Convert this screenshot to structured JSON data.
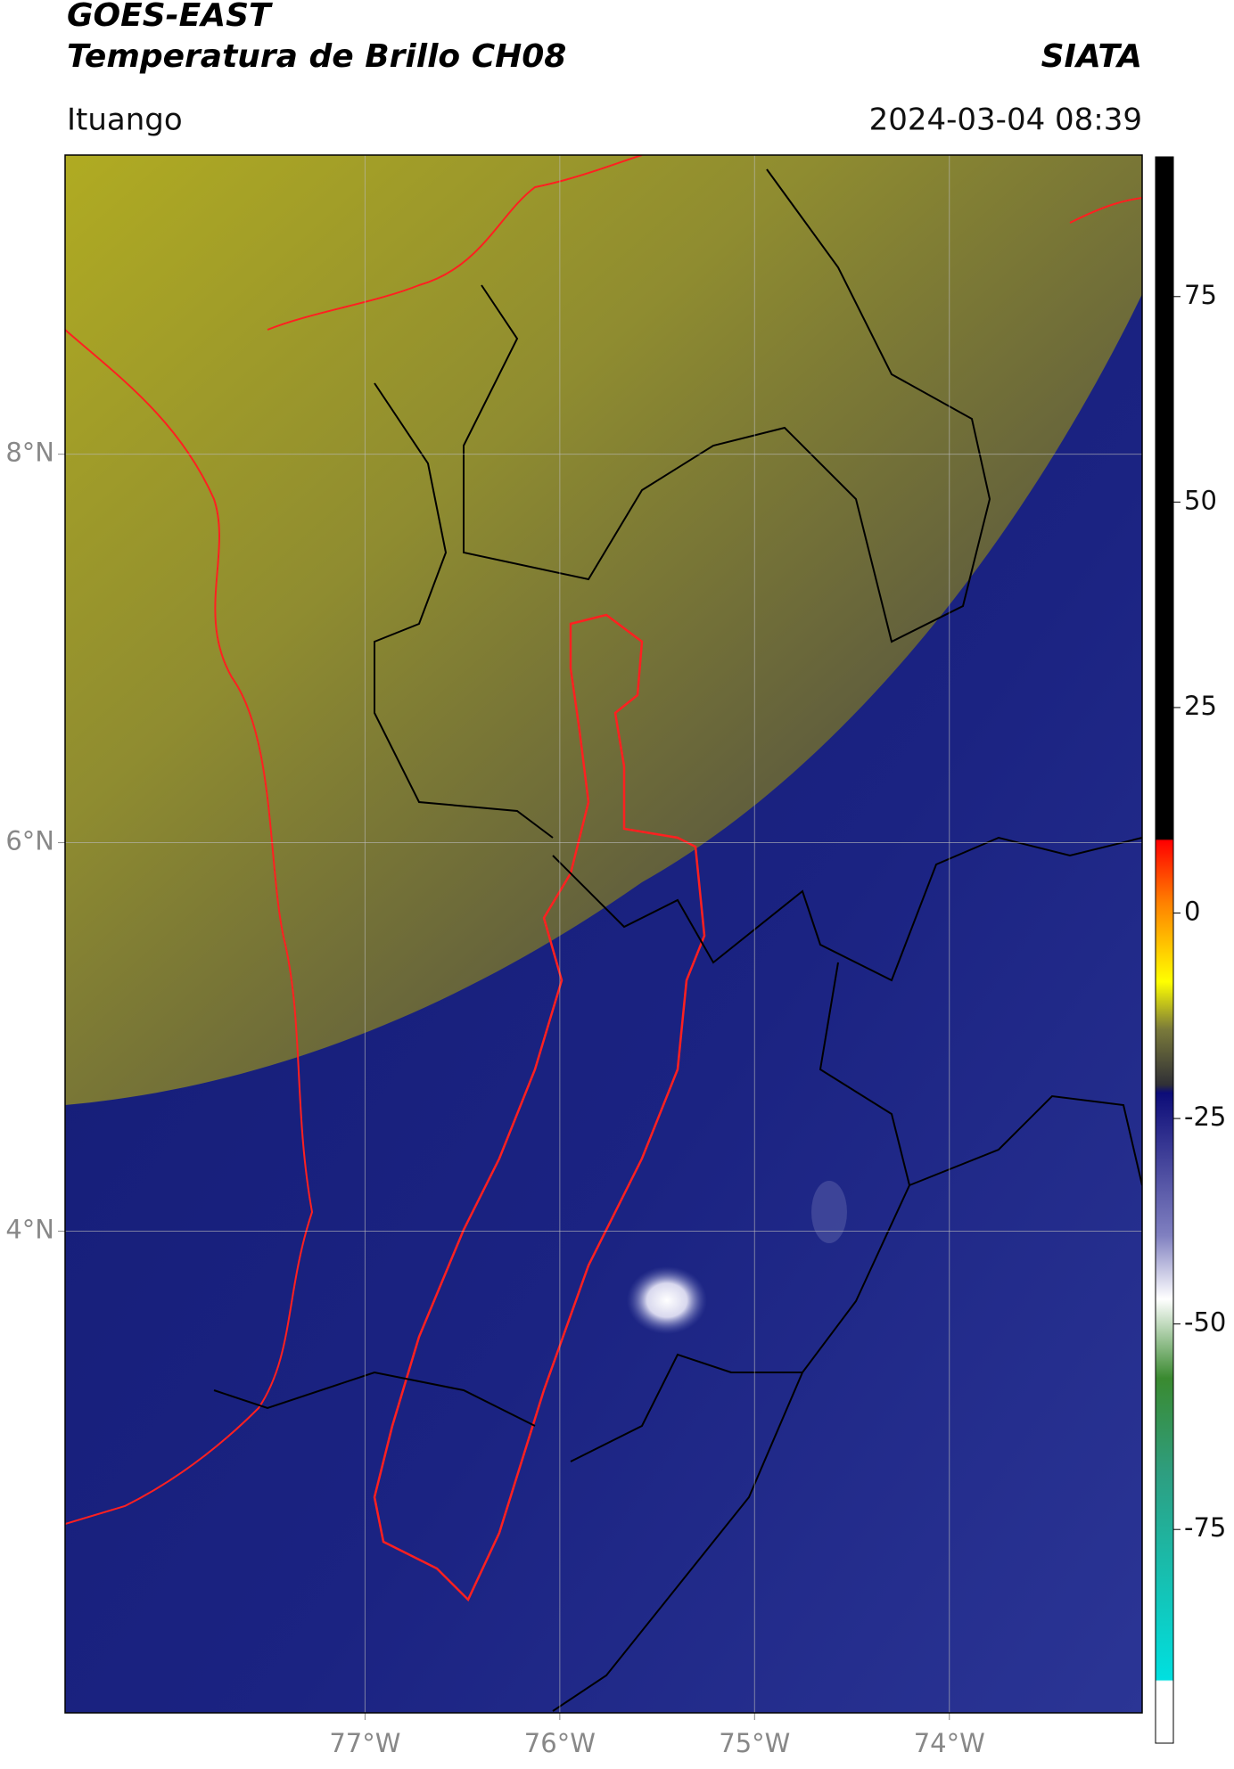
{
  "header": {
    "title": "GOES-EAST",
    "subtitle": "Temperatura de Brillo CH08",
    "brand": "SIATA",
    "region": "Ituango",
    "datetime": "2024-03-04 08:39"
  },
  "map": {
    "xlim": [
      -78.54,
      -73.01
    ],
    "ylim": [
      1.52,
      9.54
    ],
    "xticks": [
      {
        "value": -77,
        "label": "77°W"
      },
      {
        "value": -76,
        "label": "76°W"
      },
      {
        "value": -75,
        "label": "75°W"
      },
      {
        "value": -74,
        "label": "74°W"
      }
    ],
    "yticks": [
      {
        "value": 8,
        "label": "8°N"
      },
      {
        "value": 6,
        "label": "6°N"
      },
      {
        "value": 4,
        "label": "4°N"
      }
    ],
    "grid": true
  },
  "colorbar": {
    "lim": [
      -101,
      92
    ],
    "ticks": [
      75,
      50,
      25,
      0,
      -25,
      -50,
      -75
    ]
  }
}
